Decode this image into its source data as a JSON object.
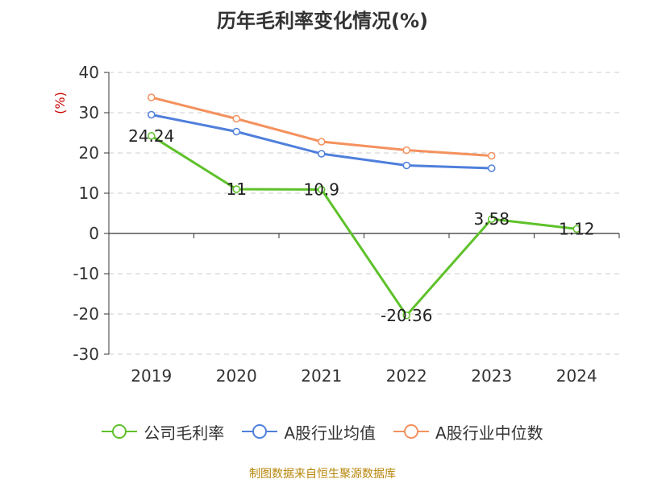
{
  "title": "历年毛利率变化情况(%)",
  "source": "制图数据来自恒生聚源数据库",
  "chart_data": {
    "type": "line",
    "title": "历年毛利率变化情况(%)",
    "ylabel": "(%)",
    "xlabel": "",
    "categories": [
      "2019",
      "2020",
      "2021",
      "2022",
      "2023",
      "2024"
    ],
    "ylim": [
      -30,
      40
    ],
    "yticks": [
      40,
      30,
      20,
      10,
      0,
      -10,
      -20,
      -30
    ],
    "grid": true,
    "legend_position": "bottom",
    "series": [
      {
        "name": "公司毛利率",
        "color": "#5ec12a",
        "values": [
          24.24,
          11,
          10.9,
          -20.36,
          3.58,
          1.12
        ],
        "labels": [
          "24.24",
          "11",
          "10.9",
          "-20.36",
          "3.58",
          "1.12"
        ]
      },
      {
        "name": "A股行业均值",
        "color": "#4f7fdc",
        "values": [
          29.5,
          25.3,
          19.8,
          16.9,
          16.2,
          null
        ]
      },
      {
        "name": "A股行业中位数",
        "color": "#f4915e",
        "values": [
          33.8,
          28.5,
          22.8,
          20.7,
          19.3,
          null
        ]
      }
    ]
  }
}
